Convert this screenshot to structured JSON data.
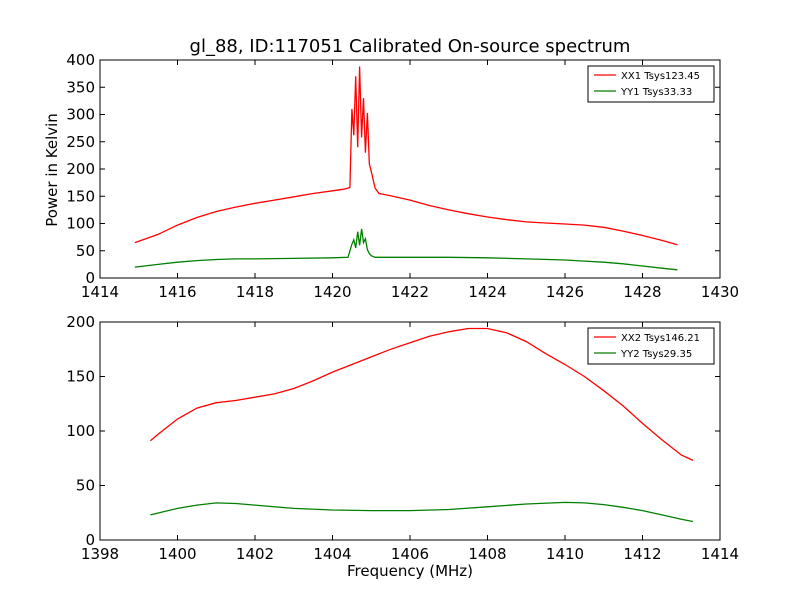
{
  "figure": {
    "title": "gl_88, ID:117051 Calibrated On-source spectrum",
    "background": "#ffffff"
  },
  "chart_data": [
    {
      "type": "line",
      "title": "gl_88, ID:117051 Calibrated On-source spectrum",
      "xlabel": "",
      "ylabel": "Power in Kelvin",
      "xlim": [
        1414,
        1430
      ],
      "ylim": [
        0,
        400
      ],
      "xticks": [
        "1414",
        "1416",
        "1418",
        "1420",
        "1422",
        "1424",
        "1426",
        "1428",
        "1430"
      ],
      "yticks": [
        "0",
        "50",
        "100",
        "150",
        "200",
        "250",
        "300",
        "350",
        "400"
      ],
      "grid": false,
      "legend_position": "top-right",
      "series": [
        {
          "name": "XX1 Tsys123.45",
          "color": "#ff0000",
          "x": [
            1414.9,
            1415.5,
            1416.0,
            1416.5,
            1417.0,
            1417.5,
            1418.0,
            1418.5,
            1419.0,
            1419.5,
            1420.0,
            1420.3,
            1420.45,
            1420.5,
            1420.55,
            1420.6,
            1420.65,
            1420.7,
            1420.75,
            1420.8,
            1420.85,
            1420.9,
            1420.95,
            1421.0,
            1421.1,
            1421.2,
            1421.5,
            1422.0,
            1422.5,
            1423.0,
            1423.5,
            1424.0,
            1424.5,
            1425.0,
            1425.5,
            1426.0,
            1426.5,
            1427.0,
            1427.5,
            1428.0,
            1428.5,
            1428.9
          ],
          "y": [
            65,
            80,
            97,
            111,
            122,
            130,
            137,
            143,
            149,
            155,
            160,
            163,
            166,
            310,
            262,
            370,
            240,
            388,
            258,
            330,
            230,
            303,
            210,
            195,
            165,
            155,
            151,
            143,
            133,
            125,
            118,
            112,
            107,
            103,
            101,
            99,
            97,
            93,
            86,
            78,
            69,
            61
          ]
        },
        {
          "name": "YY1 Tsys33.33",
          "color": "#008000",
          "x": [
            1414.9,
            1415.5,
            1416.0,
            1416.5,
            1417.0,
            1417.5,
            1418.0,
            1419.0,
            1420.0,
            1420.4,
            1420.5,
            1420.55,
            1420.6,
            1420.65,
            1420.7,
            1420.75,
            1420.8,
            1420.85,
            1420.9,
            1420.95,
            1421.0,
            1421.1,
            1421.5,
            1422.0,
            1423.0,
            1424.0,
            1425.0,
            1426.0,
            1426.5,
            1427.0,
            1427.5,
            1428.0,
            1428.5,
            1428.9
          ],
          "y": [
            20,
            25,
            29,
            32,
            34,
            35,
            35,
            36,
            37,
            38,
            62,
            70,
            55,
            85,
            60,
            90,
            65,
            72,
            52,
            45,
            41,
            38,
            38,
            38,
            38,
            37,
            35,
            33,
            31,
            29,
            26,
            22,
            18,
            15
          ]
        }
      ]
    },
    {
      "type": "line",
      "title": "",
      "xlabel": "Frequency (MHz)",
      "ylabel": "",
      "xlim": [
        1398,
        1414
      ],
      "ylim": [
        0,
        200
      ],
      "xticks": [
        "1398",
        "1400",
        "1402",
        "1404",
        "1406",
        "1408",
        "1410",
        "1412",
        "1414"
      ],
      "yticks": [
        "0",
        "50",
        "100",
        "150",
        "200"
      ],
      "grid": false,
      "legend_position": "top-right",
      "series": [
        {
          "name": "XX2 Tsys146.21",
          "color": "#ff0000",
          "x": [
            1399.3,
            1399.5,
            1400.0,
            1400.5,
            1401.0,
            1401.5,
            1402.0,
            1402.5,
            1403.0,
            1403.5,
            1404.0,
            1404.5,
            1405.0,
            1405.5,
            1406.0,
            1406.5,
            1407.0,
            1407.5,
            1408.0,
            1408.5,
            1409.0,
            1409.5,
            1410.0,
            1410.5,
            1411.0,
            1411.5,
            1412.0,
            1412.5,
            1413.0,
            1413.3
          ],
          "y": [
            91,
            97,
            111,
            121,
            126,
            128,
            131,
            134,
            139,
            146,
            154,
            161,
            168,
            175,
            181,
            187,
            191,
            194,
            194,
            190,
            182,
            171,
            161,
            150,
            137,
            123,
            107,
            92,
            78,
            73
          ]
        },
        {
          "name": "YY2 Tsys29.35",
          "color": "#008000",
          "x": [
            1399.3,
            1400.0,
            1400.5,
            1401.0,
            1401.5,
            1402.0,
            1403.0,
            1404.0,
            1405.0,
            1406.0,
            1407.0,
            1408.0,
            1409.0,
            1410.0,
            1410.5,
            1411.0,
            1411.5,
            1412.0,
            1412.5,
            1413.0,
            1413.3
          ],
          "y": [
            23,
            29,
            32,
            34,
            33.5,
            32,
            29,
            27.5,
            27,
            27,
            28,
            30.5,
            33,
            34.5,
            34,
            32.5,
            30,
            27,
            23,
            19,
            17
          ]
        }
      ]
    }
  ]
}
